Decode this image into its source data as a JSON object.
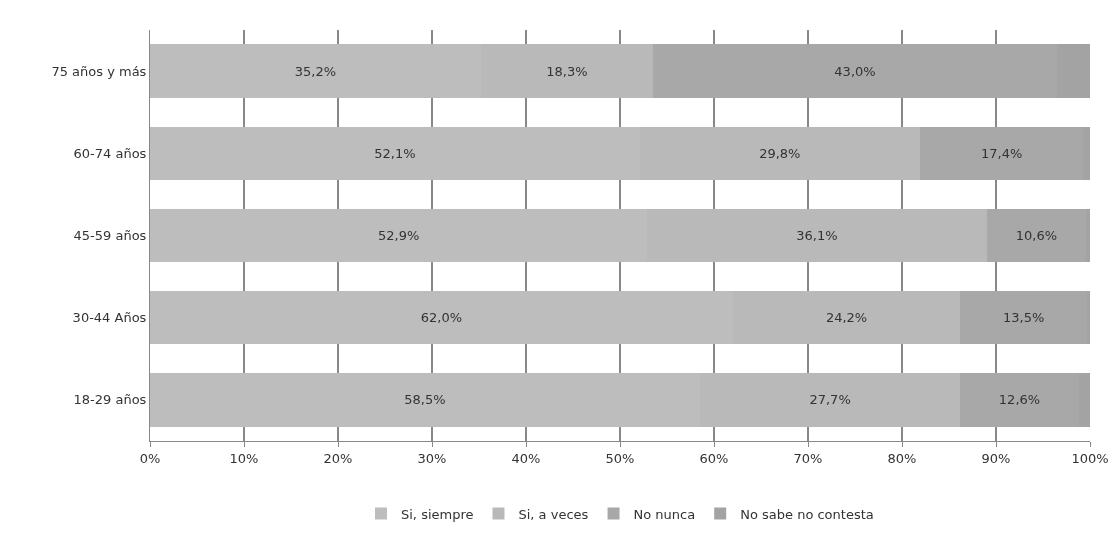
{
  "chart_data": {
    "type": "bar",
    "orientation": "horizontal",
    "stacked": true,
    "categories": [
      "75 años y más",
      "60-74 años",
      "45-59 años",
      "30-44 Años",
      "18-29 años"
    ],
    "series": [
      {
        "name": "Si, siempre",
        "color": "#bdbdbd",
        "values": [
          35.2,
          52.1,
          52.9,
          62.0,
          58.5
        ],
        "value_labels": [
          "35,2%",
          "52,1%",
          "52,9%",
          "62,0%",
          "58,5%"
        ]
      },
      {
        "name": "Si, a veces",
        "color": "#b9b9b9",
        "values": [
          18.3,
          29.8,
          36.1,
          24.2,
          27.7
        ],
        "value_labels": [
          "18,3%",
          "29,8%",
          "36,1%",
          "24,2%",
          "27,7%"
        ]
      },
      {
        "name": "No nunca",
        "color": "#a8a8a8",
        "values": [
          43.0,
          17.4,
          10.6,
          13.5,
          12.6
        ],
        "value_labels": [
          "43,0%",
          "17,4%",
          "10,6%",
          "13,5%",
          "12,6%"
        ]
      },
      {
        "name": "No sabe no contesta",
        "color": "#a3a3a3",
        "values": [
          3.5,
          0.7,
          0.4,
          0.3,
          1.2
        ]
      }
    ],
    "xlim": [
      0,
      100
    ],
    "xticks": [
      {
        "value": 0,
        "label": "0%"
      },
      {
        "value": 10,
        "label": "10%"
      },
      {
        "value": 20,
        "label": "20%"
      },
      {
        "value": 30,
        "label": "30%"
      },
      {
        "value": 40,
        "label": "40%"
      },
      {
        "value": 50,
        "label": "50%"
      },
      {
        "value": 60,
        "label": "60%"
      },
      {
        "value": 70,
        "label": "70%"
      },
      {
        "value": 80,
        "label": "80%"
      },
      {
        "value": 90,
        "label": "90%"
      },
      {
        "value": 100,
        "label": "100%"
      }
    ],
    "grid": "x",
    "legend": "bottom"
  }
}
